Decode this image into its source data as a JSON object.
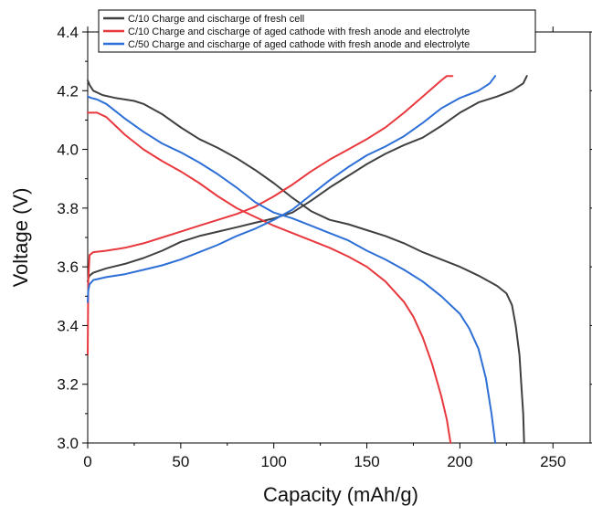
{
  "chart_data": {
    "type": "line",
    "xlabel": "Capacity (mAh/g)",
    "ylabel": "Voltage (V)",
    "xlim": [
      0,
      270
    ],
    "ylim": [
      3.0,
      4.4
    ],
    "x_ticks": [
      0,
      50,
      100,
      150,
      200,
      250
    ],
    "y_ticks": [
      3.0,
      3.2,
      3.4,
      3.6,
      3.8,
      4.0,
      4.2,
      4.4
    ],
    "x_tick_labels": [
      "0",
      "50",
      "100",
      "150",
      "200",
      "250"
    ],
    "y_tick_labels": [
      "3.0",
      "3.2",
      "3.4",
      "3.6",
      "3.8",
      "4.0",
      "4.2",
      "4.4"
    ],
    "grid": false,
    "legend_position": "top",
    "series": [
      {
        "name": "C/10 Charge and cischarge of fresh cell",
        "color": "#404040",
        "charge": [
          [
            0,
            3.55
          ],
          [
            0.3,
            3.56
          ],
          [
            1,
            3.57
          ],
          [
            3,
            3.58
          ],
          [
            10,
            3.595
          ],
          [
            20,
            3.61
          ],
          [
            30,
            3.63
          ],
          [
            40,
            3.655
          ],
          [
            50,
            3.685
          ],
          [
            60,
            3.705
          ],
          [
            70,
            3.72
          ],
          [
            80,
            3.735
          ],
          [
            90,
            3.75
          ],
          [
            100,
            3.765
          ],
          [
            110,
            3.785
          ],
          [
            120,
            3.825
          ],
          [
            130,
            3.87
          ],
          [
            140,
            3.91
          ],
          [
            150,
            3.95
          ],
          [
            160,
            3.985
          ],
          [
            170,
            4.015
          ],
          [
            180,
            4.04
          ],
          [
            190,
            4.08
          ],
          [
            200,
            4.125
          ],
          [
            210,
            4.16
          ],
          [
            220,
            4.18
          ],
          [
            228,
            4.2
          ],
          [
            234,
            4.225
          ],
          [
            236,
            4.25
          ]
        ],
        "discharge": [
          [
            0,
            4.235
          ],
          [
            1,
            4.22
          ],
          [
            3,
            4.2
          ],
          [
            8,
            4.185
          ],
          [
            15,
            4.175
          ],
          [
            20,
            4.17
          ],
          [
            25,
            4.165
          ],
          [
            30,
            4.155
          ],
          [
            40,
            4.12
          ],
          [
            50,
            4.075
          ],
          [
            60,
            4.035
          ],
          [
            70,
            4.005
          ],
          [
            80,
            3.97
          ],
          [
            90,
            3.93
          ],
          [
            100,
            3.885
          ],
          [
            110,
            3.835
          ],
          [
            120,
            3.79
          ],
          [
            130,
            3.76
          ],
          [
            140,
            3.745
          ],
          [
            150,
            3.725
          ],
          [
            160,
            3.705
          ],
          [
            170,
            3.68
          ],
          [
            180,
            3.65
          ],
          [
            190,
            3.625
          ],
          [
            200,
            3.6
          ],
          [
            210,
            3.57
          ],
          [
            220,
            3.535
          ],
          [
            225,
            3.51
          ],
          [
            228,
            3.47
          ],
          [
            230,
            3.4
          ],
          [
            232,
            3.3
          ],
          [
            233,
            3.2
          ],
          [
            234,
            3.1
          ],
          [
            234.5,
            3.0
          ]
        ]
      },
      {
        "name": "C/10 Charge and cischarge of aged cathode with fresh anode and electrolyte",
        "color": "#e8383d",
        "charge": [
          [
            0,
            3.3
          ],
          [
            0.3,
            3.55
          ],
          [
            1,
            3.64
          ],
          [
            3,
            3.65
          ],
          [
            10,
            3.655
          ],
          [
            20,
            3.665
          ],
          [
            30,
            3.68
          ],
          [
            40,
            3.7
          ],
          [
            50,
            3.72
          ],
          [
            60,
            3.74
          ],
          [
            70,
            3.76
          ],
          [
            80,
            3.78
          ],
          [
            90,
            3.805
          ],
          [
            100,
            3.84
          ],
          [
            110,
            3.88
          ],
          [
            120,
            3.925
          ],
          [
            130,
            3.965
          ],
          [
            140,
            4.0
          ],
          [
            150,
            4.035
          ],
          [
            160,
            4.075
          ],
          [
            170,
            4.125
          ],
          [
            180,
            4.18
          ],
          [
            190,
            4.235
          ],
          [
            193,
            4.25
          ],
          [
            196,
            4.25
          ]
        ],
        "discharge": [
          [
            0,
            4.125
          ],
          [
            5,
            4.125
          ],
          [
            10,
            4.11
          ],
          [
            15,
            4.08
          ],
          [
            20,
            4.05
          ],
          [
            30,
            4.0
          ],
          [
            40,
            3.96
          ],
          [
            50,
            3.925
          ],
          [
            60,
            3.885
          ],
          [
            70,
            3.84
          ],
          [
            80,
            3.8
          ],
          [
            90,
            3.77
          ],
          [
            100,
            3.74
          ],
          [
            110,
            3.715
          ],
          [
            120,
            3.69
          ],
          [
            130,
            3.665
          ],
          [
            140,
            3.635
          ],
          [
            150,
            3.6
          ],
          [
            160,
            3.55
          ],
          [
            170,
            3.48
          ],
          [
            175,
            3.43
          ],
          [
            180,
            3.36
          ],
          [
            185,
            3.27
          ],
          [
            190,
            3.16
          ],
          [
            193,
            3.08
          ],
          [
            195,
            3.0
          ]
        ]
      },
      {
        "name": "C/50 Charge and cischarge of aged cathode with fresh anode and electrolyte",
        "color": "#2d6fd6",
        "charge": [
          [
            0,
            3.48
          ],
          [
            0.3,
            3.52
          ],
          [
            1,
            3.54
          ],
          [
            3,
            3.555
          ],
          [
            10,
            3.565
          ],
          [
            20,
            3.575
          ],
          [
            30,
            3.59
          ],
          [
            40,
            3.605
          ],
          [
            50,
            3.625
          ],
          [
            60,
            3.65
          ],
          [
            70,
            3.675
          ],
          [
            80,
            3.705
          ],
          [
            90,
            3.73
          ],
          [
            100,
            3.76
          ],
          [
            110,
            3.795
          ],
          [
            120,
            3.845
          ],
          [
            130,
            3.895
          ],
          [
            140,
            3.94
          ],
          [
            150,
            3.98
          ],
          [
            160,
            4.01
          ],
          [
            170,
            4.045
          ],
          [
            180,
            4.09
          ],
          [
            190,
            4.14
          ],
          [
            200,
            4.175
          ],
          [
            210,
            4.2
          ],
          [
            216,
            4.225
          ],
          [
            219,
            4.25
          ]
        ],
        "discharge": [
          [
            0,
            4.18
          ],
          [
            2,
            4.175
          ],
          [
            5,
            4.17
          ],
          [
            10,
            4.155
          ],
          [
            15,
            4.13
          ],
          [
            20,
            4.105
          ],
          [
            30,
            4.06
          ],
          [
            40,
            4.02
          ],
          [
            50,
            3.99
          ],
          [
            60,
            3.955
          ],
          [
            70,
            3.915
          ],
          [
            80,
            3.87
          ],
          [
            90,
            3.82
          ],
          [
            100,
            3.785
          ],
          [
            110,
            3.765
          ],
          [
            120,
            3.74
          ],
          [
            130,
            3.715
          ],
          [
            140,
            3.69
          ],
          [
            150,
            3.655
          ],
          [
            160,
            3.625
          ],
          [
            170,
            3.59
          ],
          [
            180,
            3.55
          ],
          [
            190,
            3.5
          ],
          [
            200,
            3.44
          ],
          [
            205,
            3.39
          ],
          [
            210,
            3.32
          ],
          [
            214,
            3.22
          ],
          [
            217,
            3.1
          ],
          [
            219,
            3.0
          ]
        ]
      }
    ]
  }
}
